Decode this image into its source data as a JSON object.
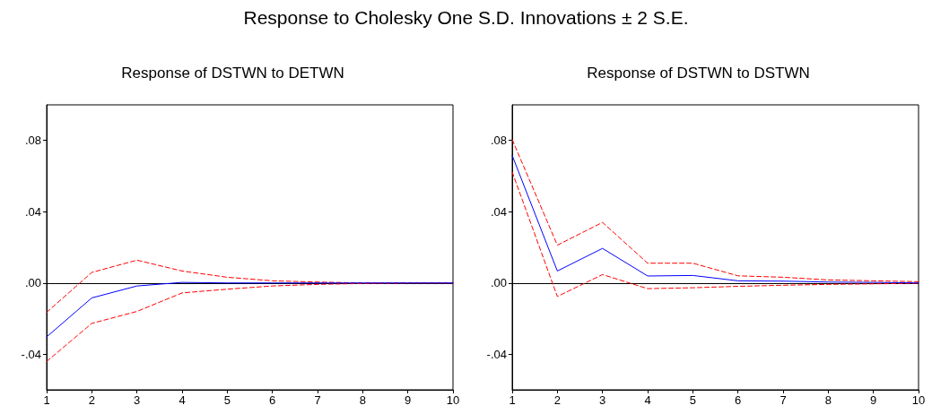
{
  "chart_data": [
    {
      "type": "line",
      "title": "Response to Cholesky One S.D. Innovations ± 2 S.E.",
      "subtitle": "Response of DSTWN to DETWN",
      "x": [
        1,
        2,
        3,
        4,
        5,
        6,
        7,
        8,
        9,
        10
      ],
      "xlim": [
        1,
        10
      ],
      "xticks": [
        1,
        2,
        3,
        4,
        5,
        6,
        7,
        8,
        9,
        10
      ],
      "ylim": [
        -0.06,
        0.1
      ],
      "yticks": [
        {
          "value": -0.04,
          "label": "-.04"
        },
        {
          "value": 0,
          "label": ".00"
        },
        {
          "value": 0.04,
          "label": ".04"
        },
        {
          "value": 0.08,
          "label": ".08"
        }
      ],
      "grid": false,
      "marker": "none",
      "ref_lines": [
        {
          "axis": "y",
          "value": 0,
          "color": "#000000"
        }
      ],
      "series": [
        {
          "color": "#ff0000",
          "line_style": "dashed",
          "values": [
            -0.0165,
            0.0059,
            0.0128,
            0.0067,
            0.0032,
            0.0012,
            0.0005,
            0,
            0,
            0
          ]
        },
        {
          "color": "#ff0000",
          "line_style": "dashed",
          "values": [
            -0.0441,
            -0.0227,
            -0.016,
            -0.0056,
            -0.0035,
            -0.0017,
            -0.0008,
            -0.0003,
            0,
            0
          ]
        },
        {
          "color": "#0000ff",
          "line_style": "solid",
          "values": [
            -0.0303,
            -0.0084,
            -0.0017,
            0.0003,
            0,
            0,
            0,
            0,
            0,
            0
          ]
        }
      ]
    },
    {
      "type": "line",
      "title": "Response of DSTWN to DSTWN",
      "x": [
        1,
        2,
        3,
        4,
        5,
        6,
        7,
        8,
        9,
        10
      ],
      "xlim": [
        1,
        10
      ],
      "xticks": [
        1,
        2,
        3,
        4,
        5,
        6,
        7,
        8,
        9,
        10
      ],
      "ylim": [
        -0.06,
        0.1
      ],
      "yticks": [
        {
          "value": -0.04,
          "label": "-.04"
        },
        {
          "value": 0,
          "label": ".00"
        },
        {
          "value": 0.04,
          "label": ".04"
        },
        {
          "value": 0.08,
          "label": ".08"
        }
      ],
      "grid": false,
      "marker": "none",
      "ref_lines": [
        {
          "axis": "y",
          "value": 0,
          "color": "#000000"
        }
      ],
      "series": [
        {
          "color": "#ff0000",
          "line_style": "dashed",
          "values": [
            0.0805,
            0.0212,
            0.034,
            0.0111,
            0.0111,
            0.004,
            0.0032,
            0.0017,
            0.0012,
            0.0007
          ]
        },
        {
          "color": "#ff0000",
          "line_style": "dashed",
          "values": [
            0.0623,
            -0.0076,
            0.0047,
            -0.0032,
            -0.0027,
            -0.0019,
            -0.0013,
            -0.0008,
            -0.0005,
            -0.0002
          ]
        },
        {
          "color": "#0000ff",
          "line_style": "solid",
          "values": [
            0.0716,
            0.0067,
            0.0194,
            0.0039,
            0.0042,
            0.0012,
            0.001,
            0.0005,
            0.0003,
            0
          ]
        }
      ]
    }
  ]
}
